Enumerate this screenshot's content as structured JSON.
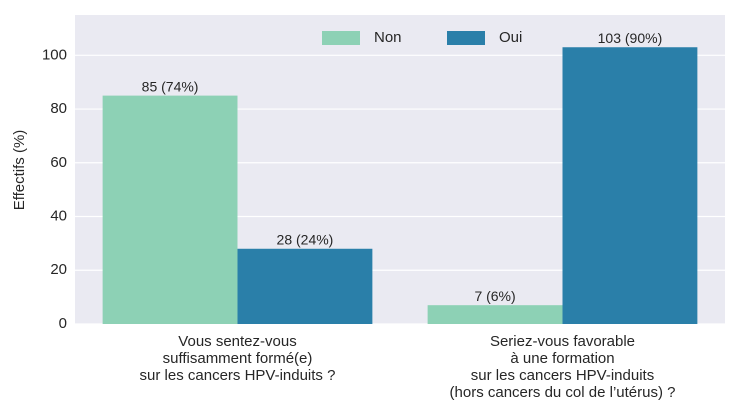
{
  "chart_data": {
    "type": "bar",
    "ylabel": "Effectifs (%)",
    "categories": [
      [
        "Vous sentez-vous",
        "suffisamment formé(e)",
        "sur les cancers HPV-induits ?"
      ],
      [
        "Seriez-vous favorable",
        "à une formation",
        "sur les cancers HPV-induits",
        "(hors cancers du col de l’utérus) ?"
      ]
    ],
    "series": [
      {
        "name": "Non",
        "color": "#8dd1b5",
        "values": [
          85,
          7
        ],
        "value_labels": [
          "85 (74%)",
          "7 (6%)"
        ]
      },
      {
        "name": "Oui",
        "color": "#2a7fa9",
        "values": [
          28,
          103
        ],
        "value_labels": [
          "28 (24%)",
          "103 (90%)"
        ]
      }
    ],
    "ylim": [
      0,
      115
    ],
    "yticks": [
      0,
      20,
      40,
      60,
      80,
      100
    ],
    "grid": true,
    "legend": "upper center"
  }
}
